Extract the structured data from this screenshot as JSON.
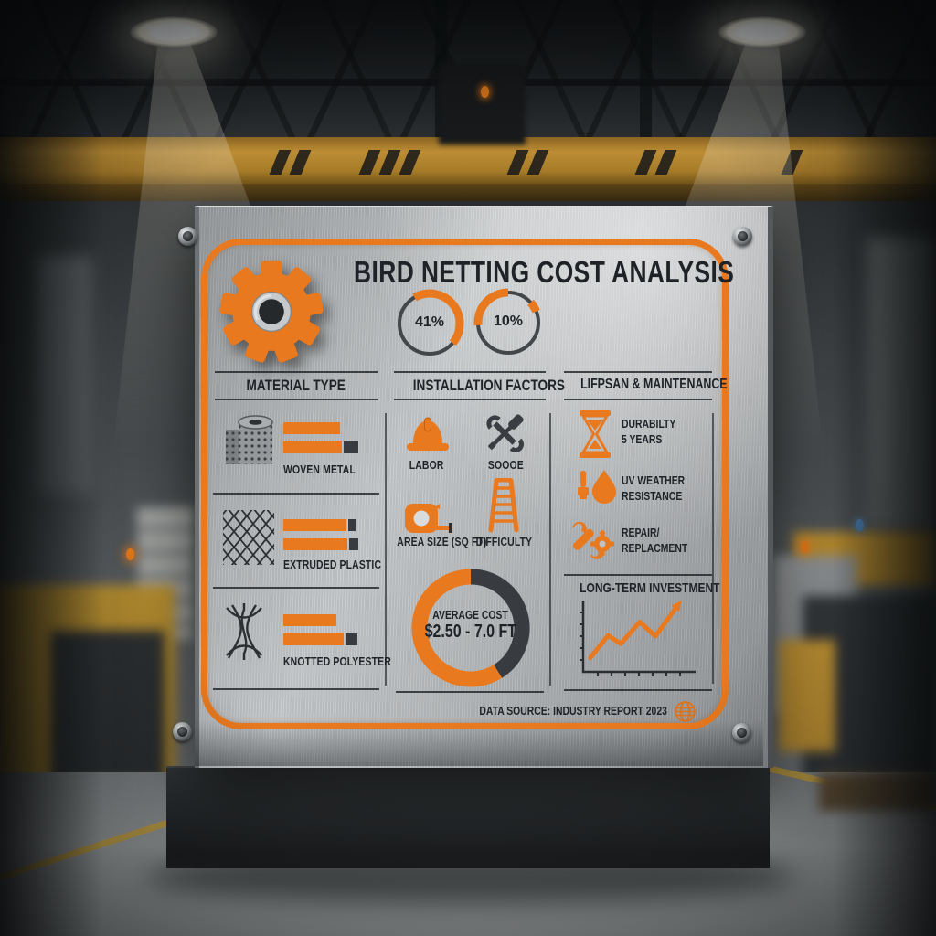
{
  "colors": {
    "orange": "#E8791F",
    "dark": "#383C40",
    "ink": "#1F2327",
    "plate": "#BFC2C4",
    "crane_yellow": "#BD8E36"
  },
  "scene": {
    "setting": "industrial warehouse interior, blurred machinery and overhead crane",
    "ceiling_lights": 2
  },
  "panel": {
    "title": "BIRD NETTING COST ANALYSIS",
    "gauges": [
      {
        "label": "41%"
      },
      {
        "label": "10%"
      }
    ],
    "materials": {
      "header": "MATERIAL TYPE",
      "items": [
        {
          "label": "WOVEN METAL",
          "icon": "wire-mesh-roll"
        },
        {
          "label": "EXTRUDED PLASTIC",
          "icon": "diamond-mesh"
        },
        {
          "label": "KNOTTED POLYESTER",
          "icon": "knotted-net"
        }
      ]
    },
    "installation": {
      "header": "INSTALLATION FACTORS",
      "factors": [
        {
          "label": "LABOR",
          "icon": "hard-hat"
        },
        {
          "label": "SOOOE",
          "icon": "crossed-tools"
        },
        {
          "label": "AREA SIZE (SQ FT)",
          "icon": "tape-measure"
        },
        {
          "label": "DIFFICULTY",
          "icon": "ladder"
        }
      ],
      "donut": {
        "line1": "AVERAGE COST",
        "line2": "$2.50 - 7.0 FT"
      }
    },
    "lifespan": {
      "header": "LIFPSAN & MAINTENANCE",
      "items": [
        {
          "line1": "DURABILTY",
          "line2": "5 YEARS",
          "icon": "hourglass"
        },
        {
          "line1": "UV WEATHER",
          "line2": "RESISTANCE",
          "icon": "droplet-brush"
        },
        {
          "line1": "REPAIR/",
          "line2": "REPLACMENT",
          "icon": "wrench-gear"
        }
      ],
      "chart_title": "LONG-TERM INVESTMENT"
    },
    "footer": "DATA SOURCE: INDUSTRY REPORT 2023"
  },
  "chart_data": [
    {
      "type": "pie",
      "subtype": "gauge",
      "label": "41%",
      "values": [
        41,
        59
      ],
      "colors": [
        "orange",
        "dark"
      ],
      "arc": {
        "start": -30,
        "sweep": 160
      }
    },
    {
      "type": "pie",
      "subtype": "gauge",
      "label": "10%",
      "values": [
        10,
        90
      ],
      "colors": [
        "orange",
        "dark"
      ],
      "arc": {
        "start": -95,
        "sweep": 95
      },
      "tick": {
        "start": 48,
        "sweep": 20
      }
    },
    {
      "type": "pie",
      "subtype": "donut",
      "title": "AVERAGE COST",
      "value_label": "$2.50 - 7.0 FT",
      "values": [
        70,
        30
      ],
      "segments": [
        {
          "color": "dark",
          "start": 0,
          "sweep": 148
        },
        {
          "color": "orange",
          "start": 148,
          "sweep": 212
        }
      ]
    },
    {
      "type": "bar",
      "title": "MATERIAL TYPE",
      "orientation": "horizontal",
      "value_labels": false,
      "categories": [
        "WOVEN METAL",
        "EXTRUDED PLASTIC",
        "KNOTTED POLYESTER"
      ],
      "groups": [
        [
          {
            "w": 62,
            "cap": 0
          },
          {
            "w": 64,
            "cap": 16
          }
        ],
        [
          {
            "w": 69,
            "cap": 8
          },
          {
            "w": 70,
            "cap": 10
          }
        ],
        [
          {
            "w": 58,
            "cap": 0
          },
          {
            "w": 66,
            "cap": 13
          }
        ]
      ],
      "note": "unlabeled relative cost bars, lengths in panel px"
    },
    {
      "type": "line",
      "title": "LONG-TERM INVESTMENT",
      "points": [
        [
          5,
          19
        ],
        [
          22,
          54
        ],
        [
          34,
          41
        ],
        [
          52,
          75
        ],
        [
          67,
          53
        ],
        [
          87,
          98
        ]
      ],
      "arrow": true,
      "axes": "plain axes with tick marks, no labels",
      "ylim": [
        0,
        100
      ]
    }
  ]
}
